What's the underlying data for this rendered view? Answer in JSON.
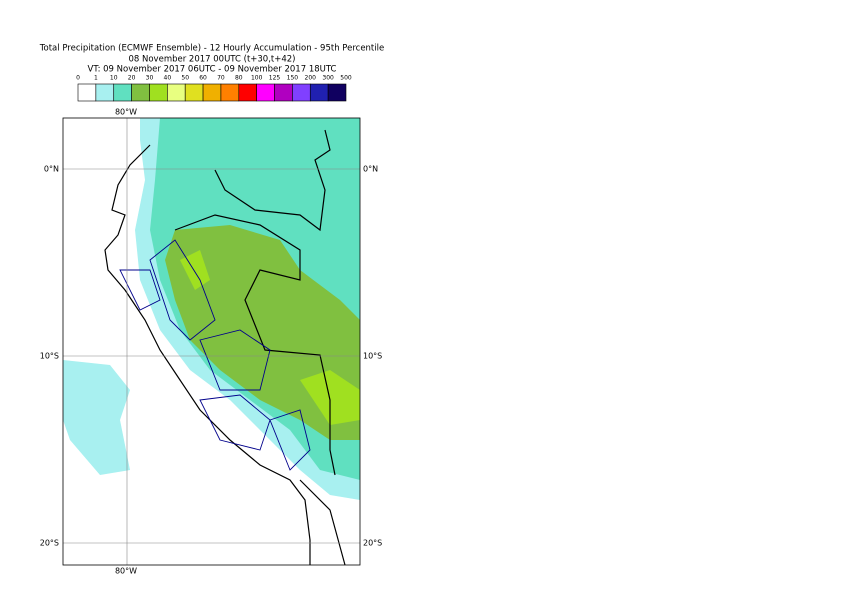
{
  "title": {
    "line1": "Total Precipitation (ECMWF Ensemble) - 12 Hourly Accumulation - 95th Percentile",
    "line2": "08 November 2017 00UTC (t+30,t+42)",
    "line3": "VT: 09 November 2017 06UTC - 09 November 2017 18UTC"
  },
  "legend": {
    "thresholds": [
      0,
      1,
      10,
      20,
      30,
      40,
      50,
      60,
      70,
      80,
      100,
      125,
      150,
      200,
      300,
      500
    ],
    "colors": [
      "#ffffff",
      "#a8f0f0",
      "#60e0c0",
      "#80c040",
      "#a0e020",
      "#e8ff80",
      "#e0e020",
      "#f0b000",
      "#ff8000",
      "#ff0000",
      "#ff00ff",
      "#b000c0",
      "#8040ff",
      "#2020b0",
      "#100060"
    ]
  },
  "map": {
    "lat_labels": [
      "0°N",
      "10°S",
      "20°S"
    ],
    "lon_label": "80°W"
  }
}
